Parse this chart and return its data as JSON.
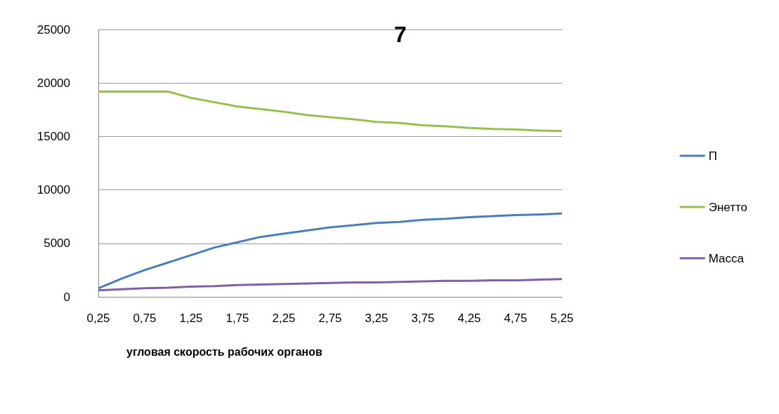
{
  "chart_data": {
    "type": "line",
    "title": "7",
    "xlabel": "угловая скорость рабочих органов",
    "categories": [
      "0,25",
      null,
      "0,75",
      null,
      "1,25",
      null,
      "1,75",
      null,
      "2,25",
      null,
      "2,75",
      null,
      "3,25",
      null,
      "3,75",
      null,
      "4,25",
      null,
      "4,75",
      null,
      "5,25"
    ],
    "series": [
      {
        "name": "П",
        "color": "#4a7ebb",
        "values": [
          800,
          1700,
          2500,
          3200,
          3900,
          4600,
          5100,
          5600,
          5900,
          6200,
          6500,
          6700,
          6900,
          7000,
          7200,
          7300,
          7450,
          7550,
          7650,
          7700,
          7800
        ]
      },
      {
        "name": "Энетто",
        "color": "#98c04f",
        "values": [
          19200,
          19200,
          19200,
          19200,
          18600,
          18200,
          17800,
          17550,
          17300,
          17000,
          16800,
          16600,
          16350,
          16250,
          16050,
          15950,
          15800,
          15700,
          15650,
          15550,
          15500
        ]
      },
      {
        "name": "Масса",
        "color": "#7e5fa8",
        "values": [
          600,
          700,
          800,
          850,
          950,
          1000,
          1100,
          1150,
          1200,
          1250,
          1300,
          1350,
          1350,
          1400,
          1450,
          1500,
          1500,
          1550,
          1550,
          1600,
          1650
        ]
      }
    ],
    "ylim": [
      0,
      25000
    ],
    "yticks": [
      0,
      5000,
      10000,
      15000,
      20000,
      25000
    ],
    "grid": "y",
    "legend": "right",
    "marker": "none",
    "line_style": "solid"
  }
}
